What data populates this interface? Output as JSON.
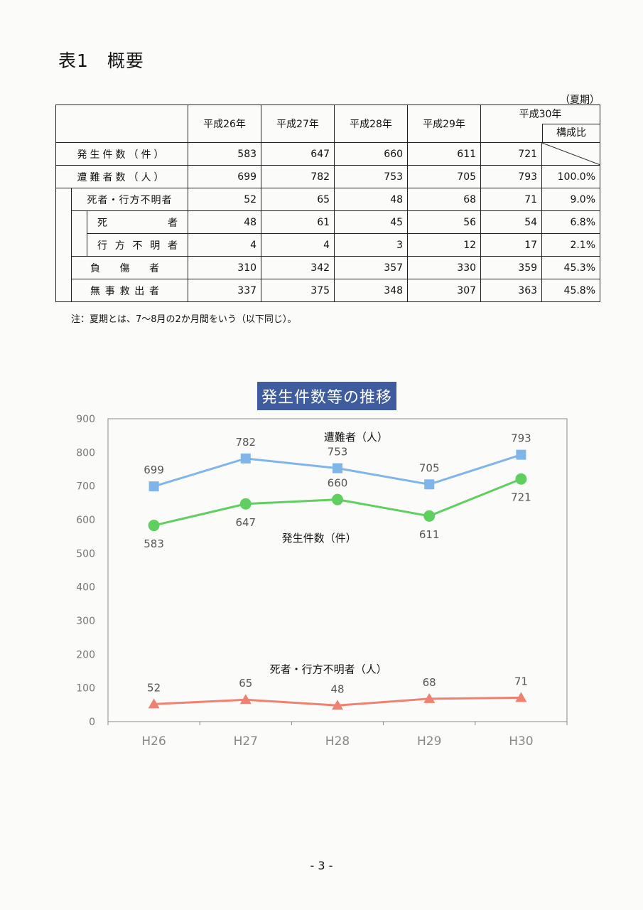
{
  "doc": {
    "title": "表1　概要",
    "season": "（夏期）",
    "note": "注：夏期とは、7～8月の2か月間をいう（以下同じ）。",
    "page_number": "- 3 -"
  },
  "table": {
    "years": [
      "平成26年",
      "平成27年",
      "平成28年",
      "平成29年",
      "平成30年"
    ],
    "ratio_header": "構成比",
    "rows": [
      {
        "label": "発生件数（件）",
        "values": [
          "583",
          "647",
          "660",
          "611",
          "721"
        ],
        "ratio": ""
      },
      {
        "label": "遭難者数（人）",
        "values": [
          "699",
          "782",
          "753",
          "705",
          "793"
        ],
        "ratio": "100.0%"
      },
      {
        "label": "死者・行方不明者",
        "values": [
          "52",
          "65",
          "48",
          "68",
          "71"
        ],
        "ratio": "9.0%"
      },
      {
        "label": "死者",
        "values": [
          "48",
          "61",
          "45",
          "56",
          "54"
        ],
        "ratio": "6.8%"
      },
      {
        "label": "行方不明者",
        "values": [
          "4",
          "4",
          "3",
          "12",
          "17"
        ],
        "ratio": "2.1%"
      },
      {
        "label": "負傷者",
        "values": [
          "310",
          "342",
          "357",
          "330",
          "359"
        ],
        "ratio": "45.3%"
      },
      {
        "label": "無事救出者",
        "values": [
          "337",
          "375",
          "348",
          "307",
          "363"
        ],
        "ratio": "45.8%"
      }
    ]
  },
  "chart_data": {
    "type": "line",
    "title": "発生件数等の推移",
    "categories": [
      "H26",
      "H27",
      "H28",
      "H29",
      "H30"
    ],
    "ylim": [
      0,
      900
    ],
    "yticks": [
      0,
      100,
      200,
      300,
      400,
      500,
      600,
      700,
      800,
      900
    ],
    "grid": false,
    "series": [
      {
        "name": "遭難者（人）",
        "values": [
          699,
          782,
          753,
          705,
          793
        ],
        "color": "#7fb5e8",
        "marker": "square"
      },
      {
        "name": "発生件数（件）",
        "values": [
          583,
          647,
          660,
          611,
          721
        ],
        "color": "#5fcf5f",
        "marker": "circle"
      },
      {
        "name": "死者・行方不明者（人）",
        "values": [
          52,
          65,
          48,
          68,
          71
        ],
        "color": "#f08070",
        "marker": "triangle"
      }
    ]
  }
}
